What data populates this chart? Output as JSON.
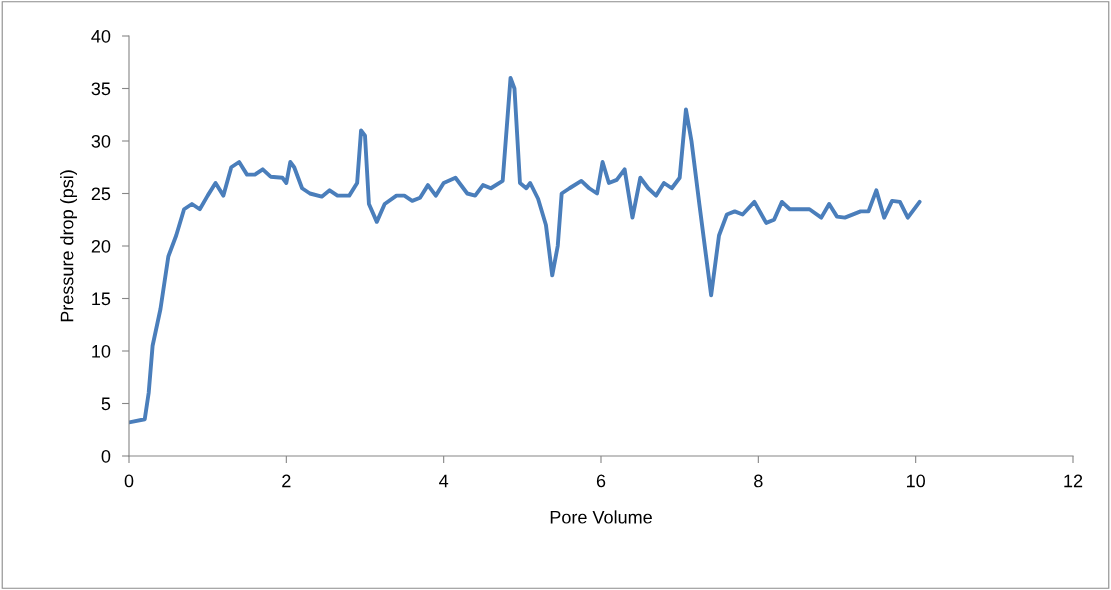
{
  "chart_data": {
    "type": "line",
    "xlabel": "Pore Volume",
    "ylabel": "Pressure drop (psi)",
    "xlim": [
      0,
      12
    ],
    "xticks": [
      0,
      2,
      4,
      6,
      8,
      10,
      12
    ],
    "ylim": [
      0,
      40
    ],
    "yticks": [
      0,
      5,
      10,
      15,
      20,
      25,
      30,
      35,
      40
    ],
    "marker": "none",
    "line_style": "solid",
    "series": [
      {
        "color": "#4a7ebb",
        "x": [
          0,
          0.2,
          0.25,
          0.3,
          0.4,
          0.5,
          0.6,
          0.7,
          0.8,
          0.9,
          1.0,
          1.1,
          1.2,
          1.3,
          1.4,
          1.5,
          1.6,
          1.7,
          1.8,
          1.95,
          2.0,
          2.05,
          2.1,
          2.2,
          2.3,
          2.45,
          2.55,
          2.65,
          2.8,
          2.9,
          2.95,
          3.0,
          3.05,
          3.15,
          3.25,
          3.4,
          3.5,
          3.6,
          3.7,
          3.8,
          3.9,
          4.0,
          4.15,
          4.3,
          4.4,
          4.5,
          4.6,
          4.75,
          4.85,
          4.9,
          4.97,
          5.05,
          5.1,
          5.2,
          5.3,
          5.38,
          5.45,
          5.5,
          5.6,
          5.75,
          5.85,
          5.95,
          6.02,
          6.1,
          6.2,
          6.3,
          6.4,
          6.5,
          6.6,
          6.7,
          6.8,
          6.9,
          7.0,
          7.08,
          7.15,
          7.25,
          7.4,
          7.5,
          7.6,
          7.7,
          7.8,
          7.95,
          8.1,
          8.2,
          8.3,
          8.4,
          8.65,
          8.8,
          8.9,
          9.0,
          9.1,
          9.3,
          9.4,
          9.5,
          9.6,
          9.7,
          9.8,
          9.9,
          10.05
        ],
        "values": [
          3.2,
          3.5,
          6,
          10.5,
          14,
          19,
          21,
          23.5,
          24,
          23.5,
          24.8,
          26,
          24.8,
          27.5,
          28,
          26.8,
          26.8,
          27.3,
          26.6,
          26.5,
          26,
          28,
          27.5,
          25.5,
          25,
          24.7,
          25.3,
          24.8,
          24.8,
          26,
          31,
          30.5,
          24,
          22.3,
          24,
          24.8,
          24.8,
          24.3,
          24.6,
          25.8,
          24.8,
          26,
          26.5,
          25,
          24.8,
          25.8,
          25.5,
          26.2,
          36,
          35,
          26,
          25.5,
          26,
          24.5,
          22,
          17.2,
          20,
          25,
          25.5,
          26.2,
          25.5,
          25,
          28,
          26,
          26.3,
          27.3,
          22.7,
          26.5,
          25.5,
          24.8,
          26,
          25.5,
          26.5,
          33,
          30,
          24,
          15.3,
          21,
          23,
          23.3,
          23,
          24.2,
          22.2,
          22.5,
          24.2,
          23.5,
          23.5,
          22.7,
          24,
          22.8,
          22.7,
          23.3,
          23.3,
          25.3,
          22.7,
          24.3,
          24.2,
          22.7,
          24.2
        ]
      }
    ]
  }
}
